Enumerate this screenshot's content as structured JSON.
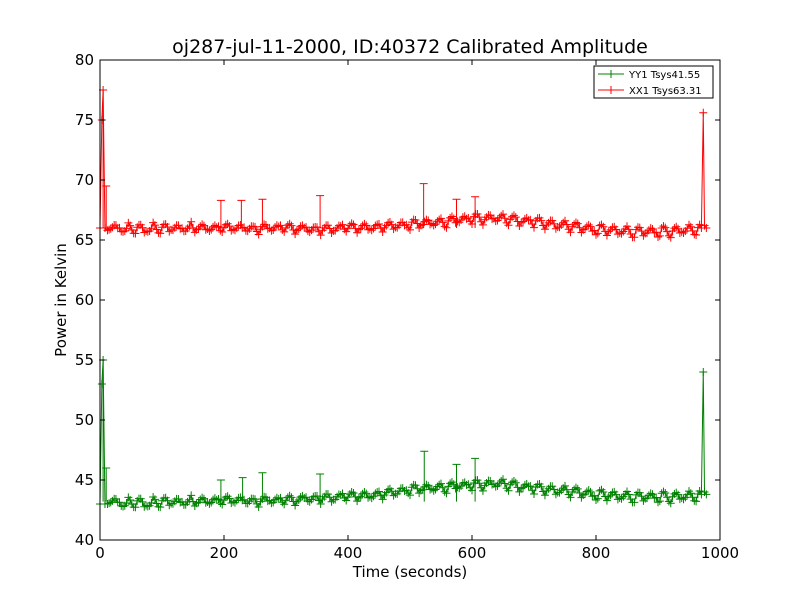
{
  "chart_data": {
    "type": "line",
    "title": "oj287-jul-11-2000, ID:40372 Calibrated Amplitude",
    "xlabel": "Time (seconds)",
    "ylabel": "Power in Kelvin",
    "xlim": [
      0,
      1000
    ],
    "ylim": [
      40,
      80
    ],
    "xticks": [
      0,
      200,
      400,
      600,
      800,
      1000
    ],
    "yticks": [
      40,
      45,
      50,
      55,
      60,
      65,
      70,
      75,
      80
    ],
    "grid": false,
    "legend_position": "top-right",
    "marker": "plus",
    "series": [
      {
        "name": "YY1 Tsys41.55",
        "color": "#008000",
        "x": [
          0,
          3,
          5,
          8,
          12,
          20,
          40,
          60,
          80,
          100,
          150,
          200,
          250,
          300,
          350,
          400,
          450,
          500,
          550,
          600,
          650,
          700,
          750,
          800,
          850,
          900,
          950,
          970,
          973,
          975,
          978
        ],
        "y": [
          43,
          53,
          55,
          43,
          43,
          43.2,
          43.0,
          43.2,
          43.0,
          43.2,
          43.2,
          43.3,
          43.3,
          43.3,
          43.5,
          43.6,
          43.8,
          44.2,
          44.4,
          44.6,
          44.7,
          44.3,
          44.1,
          43.8,
          43.6,
          43.6,
          43.6,
          43.8,
          54,
          44,
          43.8
        ],
        "spikes": [
          {
            "x": 5,
            "y": 55
          },
          {
            "x": 10,
            "y": 46
          },
          {
            "x": 195,
            "y": 45
          },
          {
            "x": 230,
            "y": 45.2
          },
          {
            "x": 262,
            "y": 45.6
          },
          {
            "x": 355,
            "y": 45.5
          },
          {
            "x": 523,
            "y": 47.4
          },
          {
            "x": 575,
            "y": 46.3
          },
          {
            "x": 605,
            "y": 46.8
          }
        ]
      },
      {
        "name": "XX1 Tsys63.31",
        "color": "#ff0000",
        "x": [
          0,
          3,
          5,
          8,
          12,
          20,
          40,
          60,
          80,
          100,
          150,
          200,
          250,
          300,
          350,
          400,
          450,
          500,
          550,
          600,
          650,
          700,
          750,
          800,
          850,
          900,
          950,
          970,
          973,
          975,
          978
        ],
        "y": [
          66,
          75,
          77.5,
          66,
          65.8,
          66.0,
          65.9,
          66.0,
          65.9,
          66.0,
          66.0,
          66.0,
          66.0,
          66.0,
          65.9,
          66.0,
          66.1,
          66.3,
          66.5,
          66.8,
          66.8,
          66.5,
          66.2,
          65.9,
          65.7,
          65.7,
          65.8,
          66.0,
          75.6,
          66.2,
          66.0
        ],
        "spikes": [
          {
            "x": 5,
            "y": 77.5
          },
          {
            "x": 10,
            "y": 69.5
          },
          {
            "x": 195,
            "y": 68.3
          },
          {
            "x": 228,
            "y": 68.3
          },
          {
            "x": 262,
            "y": 68.4
          },
          {
            "x": 355,
            "y": 68.7
          },
          {
            "x": 522,
            "y": 69.7
          },
          {
            "x": 575,
            "y": 68.4
          },
          {
            "x": 605,
            "y": 68.6
          }
        ]
      }
    ]
  }
}
